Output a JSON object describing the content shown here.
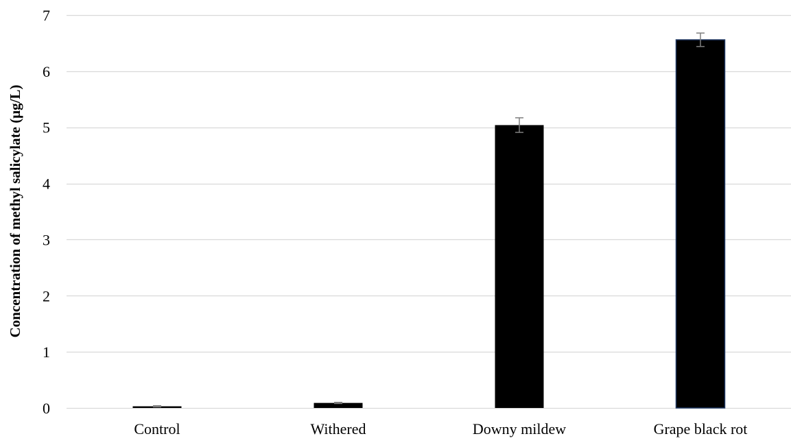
{
  "chart_data": {
    "type": "bar",
    "title": "",
    "xlabel": "",
    "ylabel": "Concentration of methyl salicylate (μg/L)",
    "categories": [
      "Control",
      "Withered",
      "Downy mildew",
      "Grape black rot"
    ],
    "values": [
      0.03,
      0.09,
      5.04,
      6.56
    ],
    "error": [
      0.01,
      0.01,
      0.13,
      0.12
    ],
    "ylim": [
      0,
      7
    ],
    "yticks": [
      0,
      1,
      2,
      3,
      4,
      5,
      6,
      7
    ],
    "grid": true,
    "legend": "none",
    "colors": {
      "bar": "#000000",
      "bar_edge_last": "#1f3864",
      "grid": "#d9d9d9",
      "error_bar": "#7f7f7f"
    }
  }
}
